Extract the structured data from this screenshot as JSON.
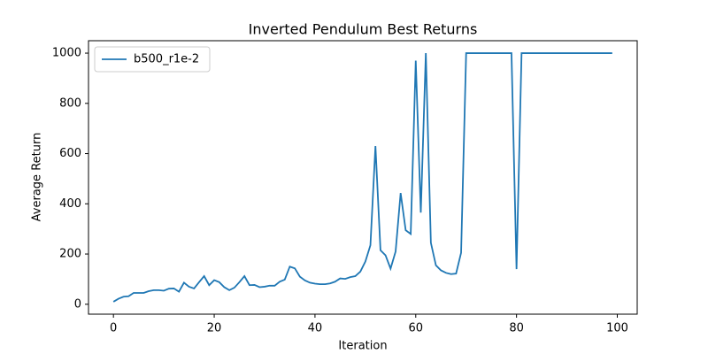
{
  "chart_data": {
    "type": "line",
    "title": "Inverted Pendulum Best Returns",
    "x_label": "Iteration",
    "y_label": "Average Return",
    "x": [
      0,
      1,
      2,
      3,
      4,
      5,
      6,
      7,
      8,
      9,
      10,
      11,
      12,
      13,
      14,
      15,
      16,
      17,
      18,
      19,
      20,
      21,
      22,
      23,
      24,
      25,
      26,
      27,
      28,
      29,
      30,
      31,
      32,
      33,
      34,
      35,
      36,
      37,
      38,
      39,
      40,
      41,
      42,
      43,
      44,
      45,
      46,
      47,
      48,
      49,
      50,
      51,
      52,
      53,
      54,
      55,
      56,
      57,
      58,
      59,
      60,
      61,
      62,
      63,
      64,
      65,
      66,
      67,
      68,
      69,
      70,
      71,
      72,
      73,
      74,
      75,
      76,
      77,
      78,
      79,
      80,
      81,
      82,
      83,
      84,
      85,
      86,
      87,
      88,
      89,
      90,
      91,
      92,
      93,
      94,
      95,
      96,
      97,
      98,
      99
    ],
    "series": [
      {
        "name": "b500_r1e-2",
        "color": "#1f77b4",
        "values": [
          10,
          22,
          30,
          32,
          45,
          45,
          45,
          52,
          56,
          56,
          54,
          62,
          63,
          50,
          86,
          70,
          63,
          88,
          112,
          76,
          96,
          88,
          68,
          56,
          66,
          88,
          112,
          76,
          77,
          68,
          70,
          74,
          74,
          90,
          98,
          150,
          143,
          110,
          95,
          86,
          82,
          80,
          80,
          83,
          90,
          103,
          101,
          108,
          112,
          130,
          170,
          235,
          630,
          215,
          195,
          142,
          210,
          443,
          295,
          280,
          970,
          365,
          1000,
          245,
          155,
          135,
          125,
          120,
          122,
          205,
          1000,
          1000,
          1000,
          1000,
          1000,
          1000,
          1000,
          1000,
          1000,
          1000,
          140,
          1000,
          1000,
          1000,
          1000,
          1000,
          1000,
          1000,
          1000,
          1000,
          1000,
          1000,
          1000,
          1000,
          1000,
          1000,
          1000,
          1000,
          1000,
          1000
        ]
      }
    ],
    "xlim": [
      -4.95,
      103.95
    ],
    "ylim": [
      -39.5,
      1049.5
    ],
    "xticks": [
      0,
      20,
      40,
      60,
      80,
      100
    ],
    "yticks": [
      0,
      200,
      400,
      600,
      800,
      1000
    ],
    "legend": "upper left"
  }
}
